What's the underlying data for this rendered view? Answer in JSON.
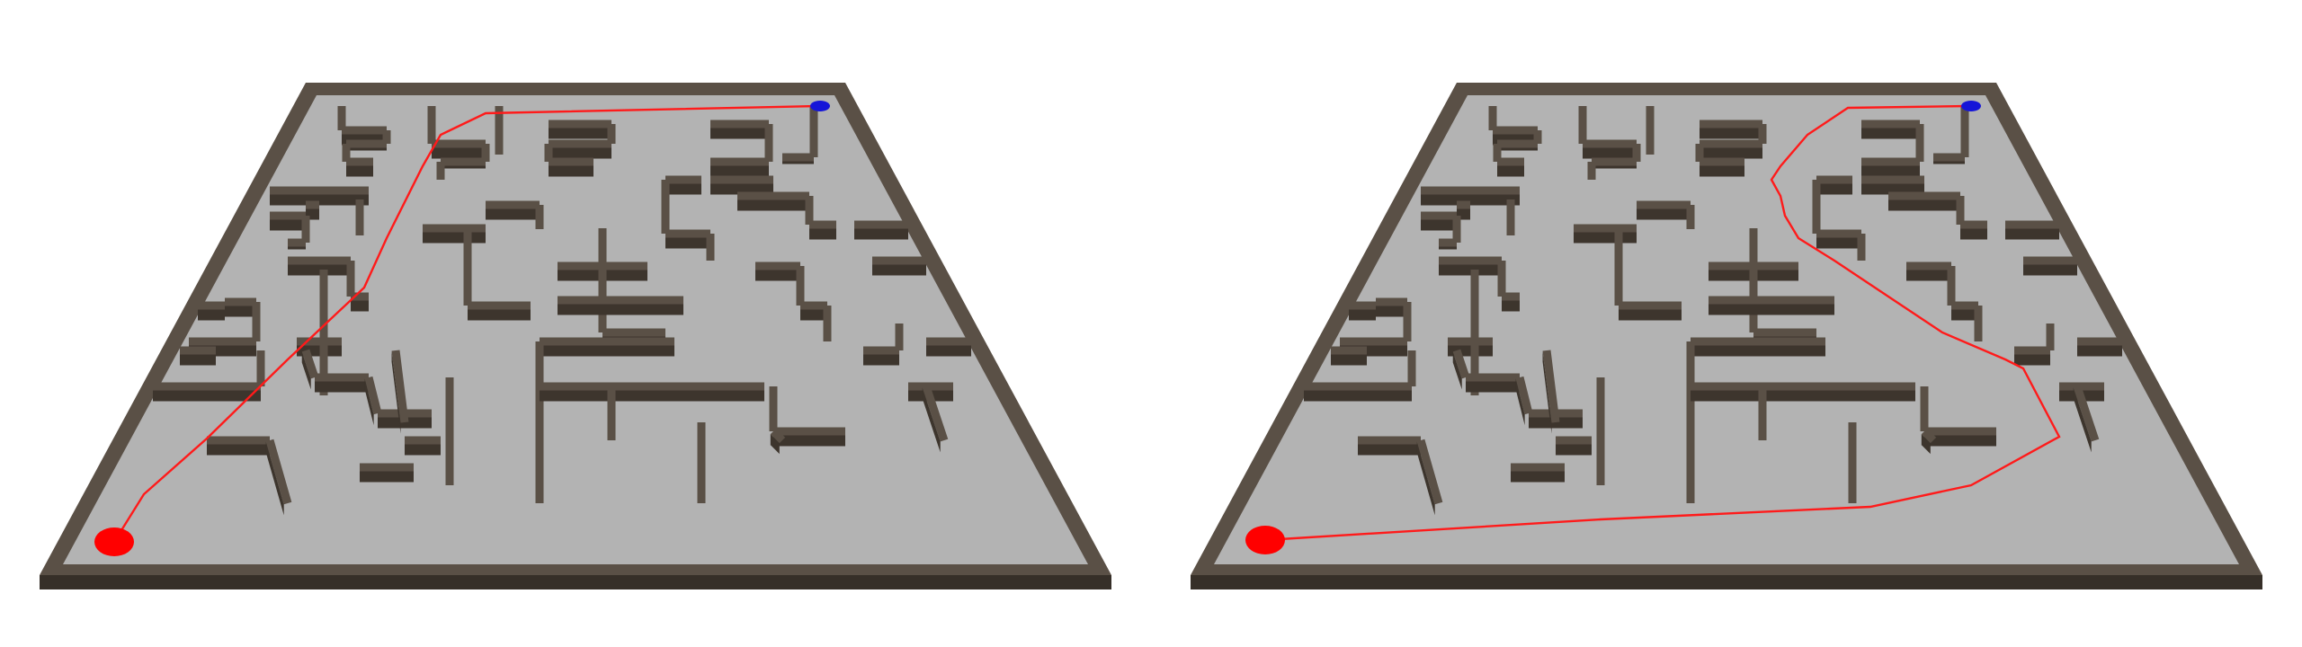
{
  "scene": {
    "panels": [
      {
        "id": "maze-left",
        "path_color": "#ff1a1a",
        "start_marker_color": "#ff0000",
        "goal_marker_color": "#1515d8"
      },
      {
        "id": "maze-right",
        "path_color": "#ff1a1a",
        "start_marker_color": "#ff0000",
        "goal_marker_color": "#1515d8"
      }
    ],
    "colors": {
      "floor": "#b3b3b3",
      "wall_top": "#5a5046",
      "wall_side": "#3d352d",
      "border_top": "#5a5046",
      "border_side": "#362f28",
      "background": "#ffffff"
    }
  }
}
